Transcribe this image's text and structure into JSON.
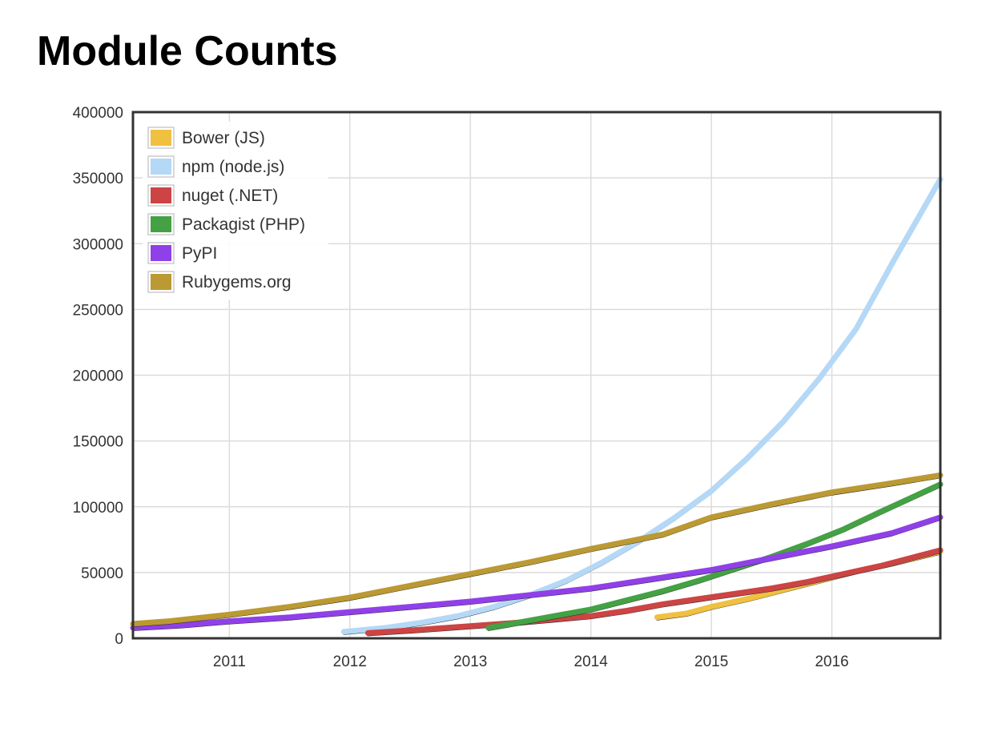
{
  "page_title": "Module Counts",
  "chart_data": {
    "type": "line",
    "title": "Module Counts",
    "xlabel": "",
    "ylabel": "",
    "xlim": [
      2010.2,
      2016.9
    ],
    "ylim": [
      0,
      400000
    ],
    "x_ticks": [
      2011,
      2012,
      2013,
      2014,
      2015,
      2016
    ],
    "x_tick_labels": [
      "2011",
      "2012",
      "2013",
      "2014",
      "2015",
      "2016"
    ],
    "y_ticks": [
      0,
      50000,
      100000,
      150000,
      200000,
      250000,
      300000,
      350000,
      400000
    ],
    "y_tick_labels": [
      "0",
      "50000",
      "100000",
      "150000",
      "200000",
      "250000",
      "300000",
      "350000",
      "400000"
    ],
    "grid": true,
    "legend_position": "top-left",
    "series": [
      {
        "name": "Bower (JS)",
        "color": "#f0c040",
        "x": [
          2014.55,
          2014.8,
          2015.0,
          2015.3,
          2015.6,
          2015.9,
          2016.2,
          2016.5,
          2016.9
        ],
        "y": [
          16000,
          19000,
          24000,
          30000,
          37000,
          44000,
          51000,
          57000,
          66000
        ]
      },
      {
        "name": "npm (node.js)",
        "color": "#b4d8f6",
        "x": [
          2011.95,
          2012.3,
          2012.6,
          2012.9,
          2013.2,
          2013.5,
          2013.8,
          2014.1,
          2014.4,
          2014.7,
          2015.0,
          2015.3,
          2015.6,
          2015.9,
          2016.2,
          2016.5,
          2016.9
        ],
        "y": [
          5000,
          8000,
          12000,
          17000,
          24000,
          33000,
          44000,
          58000,
          74000,
          92000,
          112000,
          137000,
          165000,
          198000,
          235000,
          285000,
          349000
        ]
      },
      {
        "name": "nuget (.NET)",
        "color": "#cc4444",
        "x": [
          2012.15,
          2012.5,
          2012.8,
          2013.1,
          2013.4,
          2013.7,
          2014.0,
          2014.3,
          2014.6,
          2014.9,
          2015.2,
          2015.5,
          2015.8,
          2016.1,
          2016.4,
          2016.9
        ],
        "y": [
          4000,
          6000,
          8000,
          10000,
          12000,
          14500,
          17000,
          21000,
          26000,
          30000,
          34000,
          38000,
          43000,
          49000,
          55000,
          67000
        ]
      },
      {
        "name": "Packagist (PHP)",
        "color": "#44a144",
        "x": [
          2013.15,
          2013.4,
          2013.7,
          2014.0,
          2014.3,
          2014.6,
          2014.9,
          2015.2,
          2015.5,
          2015.8,
          2016.1,
          2016.4,
          2016.9
        ],
        "y": [
          8000,
          12000,
          17000,
          22000,
          29000,
          36000,
          44000,
          53000,
          62000,
          72000,
          83000,
          96000,
          117000
        ]
      },
      {
        "name": "PyPI",
        "color": "#9040e8",
        "x": [
          2010.2,
          2010.6,
          2011.0,
          2011.5,
          2012.0,
          2012.5,
          2013.0,
          2013.5,
          2014.0,
          2014.5,
          2015.0,
          2015.5,
          2016.0,
          2016.5,
          2016.9
        ],
        "y": [
          8000,
          10000,
          13000,
          16000,
          20000,
          24000,
          28000,
          33000,
          38000,
          45000,
          52000,
          61000,
          70000,
          80000,
          92000
        ]
      },
      {
        "name": "Rubygems.org",
        "color": "#bb9933",
        "x": [
          2010.2,
          2010.5,
          2011.0,
          2011.5,
          2012.0,
          2012.5,
          2013.0,
          2013.5,
          2014.0,
          2014.6,
          2015.0,
          2015.5,
          2016.0,
          2016.5,
          2016.9
        ],
        "y": [
          11000,
          13000,
          18000,
          24000,
          31000,
          40000,
          49000,
          58000,
          68000,
          79000,
          92000,
          102000,
          111000,
          118000,
          124000
        ]
      }
    ]
  }
}
